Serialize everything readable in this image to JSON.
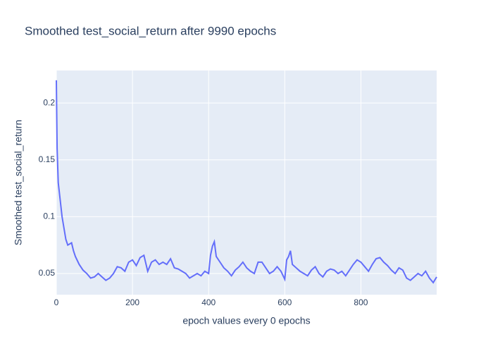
{
  "chart_data": {
    "type": "line",
    "title": "Smoothed test_social_return after 9990 epochs",
    "x_label": "epoch values every 0 epochs",
    "y_label": "Smoothed test_social_return",
    "x": [
      0,
      2,
      5,
      10,
      15,
      20,
      25,
      30,
      40,
      45,
      50,
      60,
      70,
      80,
      90,
      100,
      110,
      120,
      130,
      140,
      150,
      160,
      170,
      180,
      190,
      200,
      210,
      220,
      230,
      240,
      250,
      260,
      270,
      280,
      290,
      300,
      310,
      320,
      330,
      340,
      350,
      360,
      370,
      380,
      390,
      400,
      405,
      410,
      415,
      420,
      430,
      440,
      450,
      460,
      470,
      480,
      490,
      500,
      510,
      520,
      530,
      540,
      550,
      560,
      570,
      580,
      590,
      600,
      605,
      610,
      615,
      620,
      630,
      640,
      650,
      660,
      670,
      680,
      690,
      700,
      710,
      720,
      730,
      740,
      750,
      760,
      770,
      780,
      790,
      800,
      810,
      820,
      830,
      840,
      850,
      860,
      870,
      880,
      890,
      900,
      910,
      920,
      930,
      940,
      950,
      960,
      970,
      980,
      990,
      999
    ],
    "series": [
      {
        "name": "Smoothed test_social_return",
        "color": "#636efa",
        "values": [
          0.22,
          0.16,
          0.13,
          0.115,
          0.1,
          0.09,
          0.08,
          0.075,
          0.077,
          0.07,
          0.065,
          0.058,
          0.053,
          0.05,
          0.046,
          0.047,
          0.05,
          0.047,
          0.044,
          0.046,
          0.05,
          0.056,
          0.055,
          0.052,
          0.06,
          0.062,
          0.057,
          0.064,
          0.066,
          0.052,
          0.06,
          0.062,
          0.058,
          0.06,
          0.058,
          0.063,
          0.055,
          0.054,
          0.052,
          0.05,
          0.046,
          0.048,
          0.05,
          0.048,
          0.052,
          0.05,
          0.066,
          0.074,
          0.078,
          0.065,
          0.06,
          0.055,
          0.052,
          0.048,
          0.053,
          0.056,
          0.06,
          0.055,
          0.052,
          0.05,
          0.06,
          0.06,
          0.055,
          0.05,
          0.052,
          0.056,
          0.052,
          0.045,
          0.062,
          0.065,
          0.07,
          0.058,
          0.055,
          0.052,
          0.05,
          0.048,
          0.053,
          0.056,
          0.05,
          0.047,
          0.052,
          0.054,
          0.053,
          0.05,
          0.052,
          0.048,
          0.053,
          0.058,
          0.062,
          0.06,
          0.056,
          0.052,
          0.058,
          0.063,
          0.064,
          0.06,
          0.057,
          0.053,
          0.05,
          0.055,
          0.053,
          0.046,
          0.044,
          0.047,
          0.05,
          0.048,
          0.052,
          0.046,
          0.042,
          0.047
        ]
      }
    ],
    "xlim": [
      0,
      999
    ],
    "ylim": [
      0.0314,
      0.2286
    ],
    "xticks": [
      0,
      200,
      400,
      600,
      800
    ],
    "yticks": [
      0.05,
      0.1,
      0.15,
      0.2
    ],
    "grid": true
  }
}
